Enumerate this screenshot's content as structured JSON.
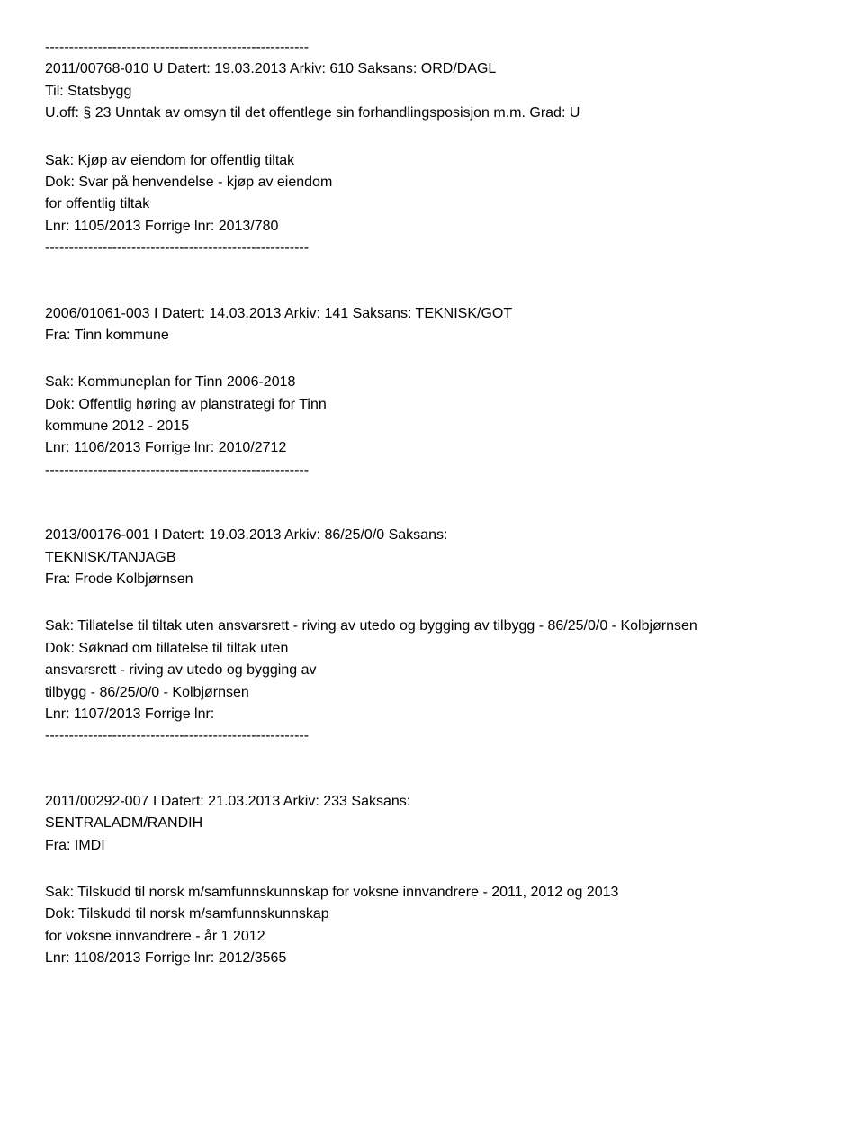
{
  "separator": "-------------------------------------------------------",
  "entries": [
    {
      "header_line": "2011/00768-010 U   Datert: 19.03.2013   Arkiv: 610   Saksans: ORD/DAGL",
      "til": "Til: Statsbygg",
      "uoff": "U.off: § 23 Unntak av omsyn til det offentlege sin forhandlingsposisjon m.m.   Grad: U",
      "sak": "Sak: Kjøp av eiendom for offentlig tiltak",
      "dok_lines": [
        "Dok: Svar på henvendelse - kjøp av eiendom",
        "for offentlig tiltak"
      ],
      "lnr": "Lnr: 1105/2013   Forrige lnr: 2013/780"
    },
    {
      "header_line": "2006/01061-003 I   Datert: 14.03.2013   Arkiv: 141   Saksans: TEKNISK/GOT",
      "fra": "Fra: Tinn kommune",
      "sak": "Sak: Kommuneplan for Tinn 2006-2018",
      "dok_lines": [
        "Dok: Offentlig høring av planstrategi for Tinn",
        "kommune 2012 - 2015"
      ],
      "lnr": "Lnr: 1106/2013   Forrige lnr: 2010/2712"
    },
    {
      "header_line": "2013/00176-001 I   Datert: 19.03.2013   Arkiv: 86/25/0/0   Saksans:",
      "header_line2": "TEKNISK/TANJAGB",
      "fra": "Fra: Frode Kolbjørnsen",
      "sak": "Sak: Tillatelse til tiltak uten ansvarsrett - riving av utedo og bygging av tilbygg - 86/25/0/0 - Kolbjørnsen",
      "dok_lines": [
        "Dok: Søknad om tillatelse til tiltak uten",
        "ansvarsrett - riving av utedo og bygging av",
        "tilbygg - 86/25/0/0 - Kolbjørnsen"
      ],
      "lnr": "Lnr: 1107/2013   Forrige lnr:"
    },
    {
      "header_line": "2011/00292-007 I   Datert: 21.03.2013   Arkiv: 233   Saksans:",
      "header_line2": "SENTRALADM/RANDIH",
      "fra": "Fra: IMDI",
      "sak": "Sak: Tilskudd til norsk m/samfunnskunnskap for voksne innvandrere - 2011, 2012 og 2013",
      "dok_lines": [
        "Dok: Tilskudd til norsk m/samfunnskunnskap",
        "for voksne innvandrere - år 1 2012"
      ],
      "lnr": "Lnr: 1108/2013   Forrige lnr: 2012/3565"
    }
  ]
}
